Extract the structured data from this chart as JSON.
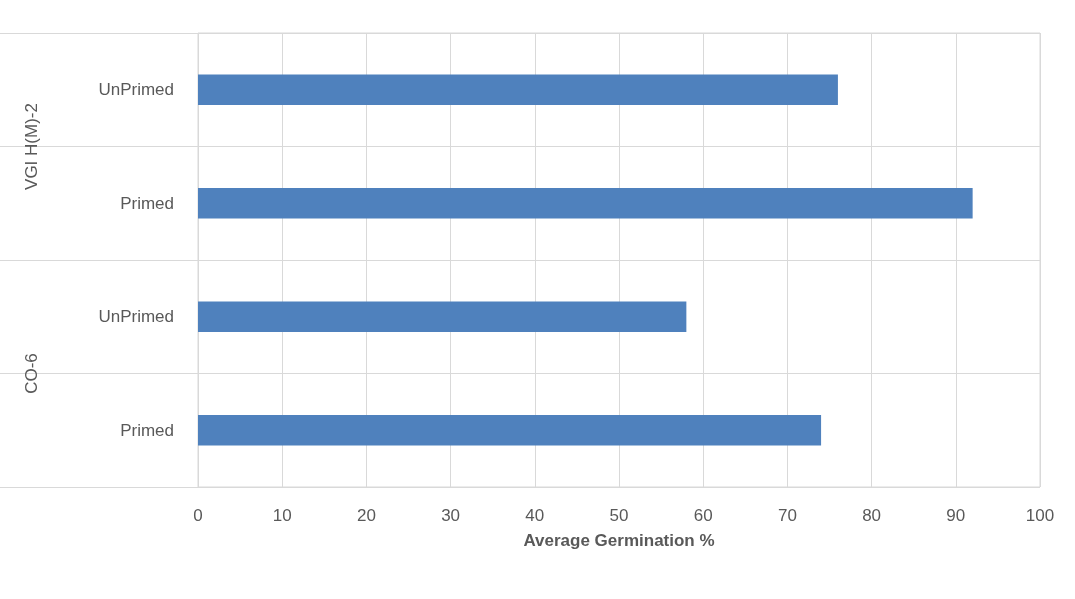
{
  "chart_data": {
    "type": "bar",
    "orientation": "horizontal",
    "xlabel": "Average Germination %",
    "categories": [
      "UnPrimed",
      "Primed",
      "UnPrimed",
      "Primed"
    ],
    "values": [
      76,
      92,
      58,
      74
    ],
    "color": "#4f81bd",
    "xlim": [
      0,
      100
    ],
    "xticks": [
      0,
      10,
      20,
      30,
      40,
      50,
      60,
      70,
      80,
      90,
      100
    ],
    "grid": true,
    "annotations": [
      "VGI H(M)-2",
      "CO-6"
    ]
  }
}
